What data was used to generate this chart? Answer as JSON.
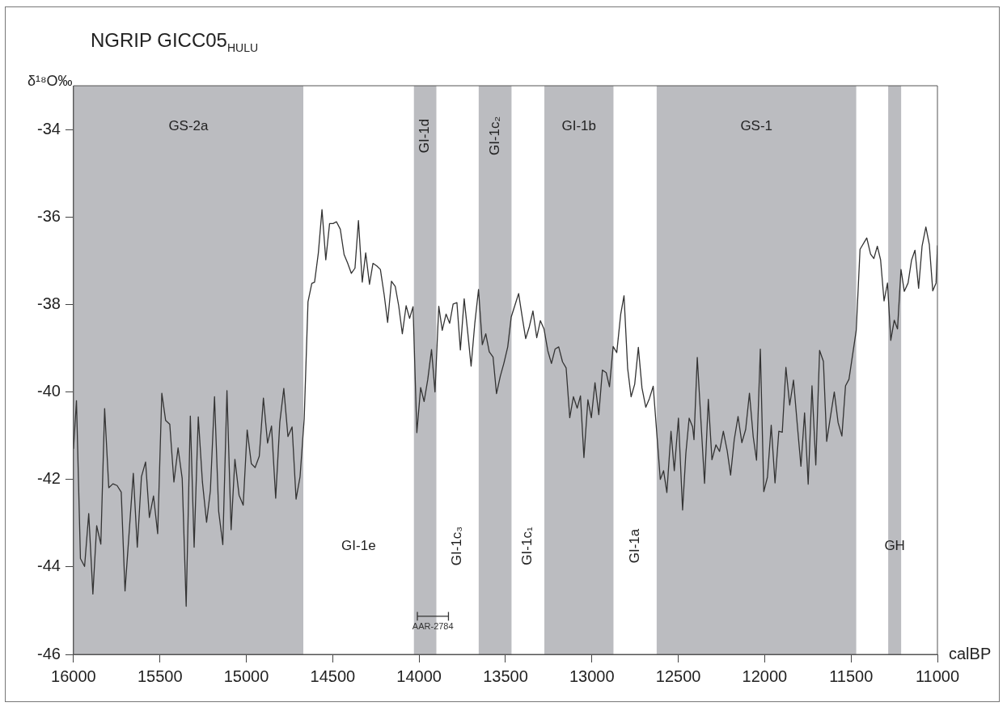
{
  "chart_data": {
    "type": "line",
    "title": "NGRIP GICC05$_{HULU}$",
    "ylabel": "δ¹⁸O‰",
    "xlabel": "calBP",
    "xlim": [
      16000,
      11000
    ],
    "xticks": [
      16000,
      15500,
      15000,
      14500,
      14000,
      13500,
      13000,
      12500,
      12000,
      11500,
      11000
    ],
    "ylim": [
      -46,
      -33
    ],
    "yticks": [
      -34,
      -36,
      -38,
      -40,
      -42,
      -44,
      -46
    ],
    "grid": false,
    "legend": false,
    "marker": "none",
    "line_style": "solid",
    "bands": [
      {
        "axis": "x",
        "from": 16000,
        "to": 14670,
        "label": "GS-2a",
        "color": "#bbbcc0"
      },
      {
        "axis": "x",
        "from": 14030,
        "to": 13900,
        "label": "GI-1d",
        "color": "#bbbcc0"
      },
      {
        "axis": "x",
        "from": 13655,
        "to": 13465,
        "label": "GI-1c₂",
        "color": "#bbbcc0"
      },
      {
        "axis": "x",
        "from": 13275,
        "to": 12875,
        "label": "GI-1b",
        "color": "#bbbcc0"
      },
      {
        "axis": "x",
        "from": 12625,
        "to": 11470,
        "label": "GS-1",
        "color": "#bbbcc0"
      },
      {
        "axis": "x",
        "from": 11285,
        "to": 11210,
        "label": "GH",
        "color": "#bbbcc0"
      }
    ],
    "annotations": [
      "GI-1e",
      "GI-1c₃",
      "GI-1c₁",
      "GI-1a"
    ],
    "series": [
      {
        "type": "line",
        "color": "#333333",
        "x": [
          16000,
          15983,
          15960,
          15936,
          15912,
          15888,
          15866,
          15842,
          15820,
          15796,
          15772,
          15748,
          15724,
          15702,
          15654,
          15631,
          15607,
          15583,
          15561,
          15537,
          15513,
          15489,
          15467,
          15443,
          15419,
          15395,
          15371,
          15348,
          15324,
          15302,
          15278,
          15254,
          15230,
          15208,
          15184,
          15160,
          15136,
          15112,
          15088,
          15066,
          15042,
          15018,
          14995,
          14971,
          14949,
          14925,
          14901,
          14877,
          14854,
          14830,
          14806,
          14783,
          14759,
          14735,
          14712,
          14689,
          14665,
          14643,
          14621,
          14605,
          14583,
          14562,
          14540,
          14518,
          14498,
          14478,
          14456,
          14434,
          14414,
          14392,
          14371,
          14351,
          14329,
          14309,
          14287,
          14267,
          14245,
          14224,
          14202,
          14182,
          14160,
          14138,
          14118,
          14097,
          14075,
          14055,
          14035,
          14013,
          13991,
          13971,
          13950,
          13928,
          13908,
          13886,
          13866,
          13844,
          13823,
          13803,
          13781,
          13761,
          13739,
          13719,
          13699,
          13677,
          13656,
          13634,
          13614,
          13594,
          13572,
          13552,
          13530,
          13509,
          13487,
          13467,
          13447,
          13424,
          13403,
          13383,
          13362,
          13341,
          13319,
          13298,
          13277,
          13255,
          13234,
          13213,
          13192,
          13170,
          13149,
          13128,
          13107,
          13085,
          13066,
          13046,
          13023,
          13003,
          12982,
          12960,
          12939,
          12917,
          12898,
          12877,
          12856,
          12833,
          12814,
          12793,
          12773,
          12752,
          12731,
          12710,
          12688,
          12667,
          12645,
          12604,
          12585,
          12566,
          12542,
          12523,
          12499,
          12475,
          12456,
          12437,
          12417,
          12409,
          12390,
          12348,
          12326,
          12305,
          12282,
          12261,
          12239,
          12217,
          12197,
          12176,
          12154,
          12132,
          12110,
          12088,
          12066,
          12047,
          12025,
          12005,
          11984,
          11962,
          11940,
          11918,
          11898,
          11877,
          11855,
          11833,
          11812,
          11790,
          11769,
          11748,
          11726,
          11704,
          11682,
          11660,
          11641,
          11619,
          11597,
          11575,
          11553,
          11532,
          11512,
          11470,
          11448,
          11409,
          11387,
          11368,
          11348,
          11329,
          11309,
          11289,
          11270,
          11250,
          11231,
          11211,
          11192,
          11170,
          11150,
          11130,
          11109,
          11089,
          11067,
          11047,
          11027,
          11008,
          11000
        ],
        "values": [
          -41.3,
          -40.2,
          -43.81,
          -43.99,
          -42.78,
          -44.62,
          -43.06,
          -43.48,
          -40.38,
          -42.19,
          -42.1,
          -42.14,
          -42.29,
          -44.55,
          -41.86,
          -43.55,
          -41.94,
          -41.6,
          -42.87,
          -42.38,
          -43.24,
          -40.03,
          -40.65,
          -40.74,
          -42.06,
          -41.28,
          -41.98,
          -44.9,
          -40.55,
          -43.55,
          -40.57,
          -42.06,
          -42.98,
          -42.26,
          -40.11,
          -42.73,
          -43.49,
          -39.97,
          -43.15,
          -41.54,
          -42.36,
          -42.59,
          -40.87,
          -41.64,
          -41.73,
          -41.47,
          -40.14,
          -41.17,
          -40.78,
          -42.43,
          -40.69,
          -39.92,
          -41.02,
          -40.8,
          -42.45,
          -41.94,
          -40.62,
          -37.94,
          -37.52,
          -37.49,
          -36.82,
          -35.83,
          -36.98,
          -36.15,
          -36.15,
          -36.11,
          -36.28,
          -36.86,
          -37.05,
          -37.29,
          -37.17,
          -36.08,
          -37.49,
          -36.82,
          -37.54,
          -37.06,
          -37.12,
          -37.2,
          -37.78,
          -38.41,
          -37.47,
          -37.59,
          -38.03,
          -38.67,
          -38.03,
          -38.32,
          -38.05,
          -40.93,
          -39.9,
          -40.22,
          -39.72,
          -39.03,
          -40.0,
          -38.04,
          -38.59,
          -38.22,
          -38.43,
          -37.99,
          -37.96,
          -39.04,
          -37.87,
          -38.62,
          -39.41,
          -38.41,
          -37.66,
          -38.92,
          -38.67,
          -39.08,
          -39.2,
          -40.04,
          -39.64,
          -39.34,
          -38.97,
          -38.29,
          -38.04,
          -37.75,
          -38.29,
          -38.78,
          -38.51,
          -38.15,
          -38.76,
          -38.37,
          -38.56,
          -39.06,
          -39.35,
          -39.02,
          -38.97,
          -39.31,
          -39.45,
          -40.59,
          -40.11,
          -40.37,
          -40.09,
          -41.5,
          -40.18,
          -40.59,
          -39.79,
          -40.52,
          -39.5,
          -39.56,
          -39.88,
          -38.96,
          -39.1,
          -38.22,
          -37.8,
          -39.46,
          -40.11,
          -39.82,
          -38.98,
          -39.91,
          -40.35,
          -40.15,
          -39.87,
          -42.0,
          -41.8,
          -42.3,
          -40.9,
          -41.8,
          -40.6,
          -42.7,
          -41.4,
          -40.6,
          -40.8,
          -41.09,
          -39.21,
          -42.09,
          -40.17,
          -41.55,
          -41.21,
          -41.36,
          -40.9,
          -41.34,
          -41.9,
          -41.09,
          -40.56,
          -41.16,
          -40.86,
          -40.03,
          -41.03,
          -41.56,
          -39.02,
          -42.28,
          -41.95,
          -40.76,
          -42.08,
          -40.9,
          -40.92,
          -39.44,
          -40.3,
          -39.73,
          -40.71,
          -41.7,
          -40.48,
          -42.11,
          -39.86,
          -41.67,
          -39.05,
          -39.3,
          -41.13,
          -40.56,
          -40.0,
          -40.7,
          -41.01,
          -39.86,
          -39.71,
          -38.59,
          -36.74,
          -36.48,
          -36.85,
          -36.95,
          -36.67,
          -36.98,
          -37.92,
          -37.51,
          -38.82,
          -38.36,
          -38.56,
          -37.2,
          -37.7,
          -37.51,
          -36.99,
          -36.76,
          -37.63,
          -36.67,
          -36.23,
          -36.63,
          -37.69,
          -37.51,
          -36.65
        ]
      },
      {
        "type": "line",
        "name": "AAR-2784",
        "color": "#333333",
        "x": [
          14010,
          13830
        ],
        "values": [
          -45.13,
          -45.13
        ],
        "errors": [
          0.1,
          0.1
        ]
      }
    ]
  }
}
